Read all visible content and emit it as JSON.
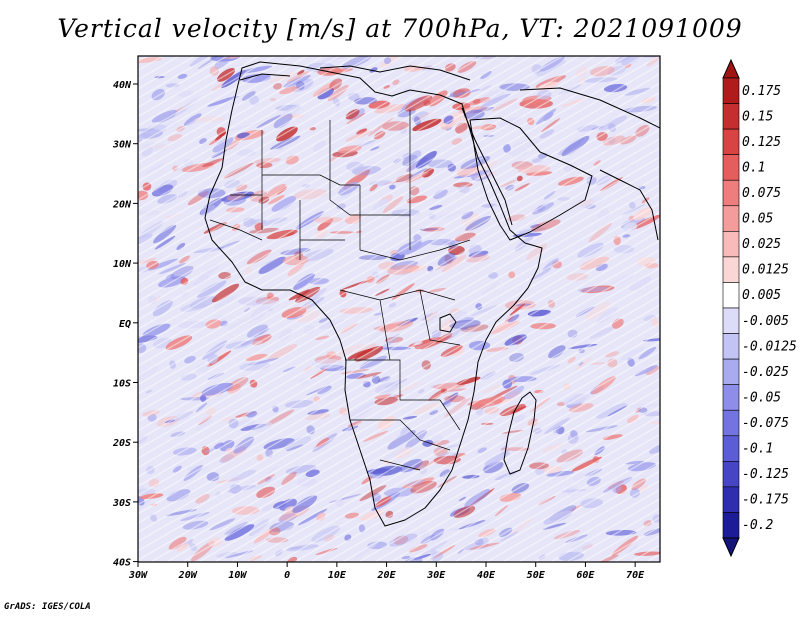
{
  "title": "Vertical velocity [m/s] at 700hPa, VT: 2021091009",
  "footer": "GrADS: IGES/COLA",
  "lon_labels": [
    "30W",
    "20W",
    "10W",
    "0",
    "10E",
    "20E",
    "30E",
    "40E",
    "50E",
    "60E",
    "70E"
  ],
  "lat_labels": [
    "40N",
    "30N",
    "20N",
    "10N",
    "EQ",
    "10S",
    "20S",
    "30S",
    "40S"
  ],
  "colorbar": {
    "labels": [
      "0.175",
      "0.15",
      "0.125",
      "0.1",
      "0.075",
      "0.05",
      "0.025",
      "0.0125",
      "0.005",
      "-0.005",
      "-0.0125",
      "-0.025",
      "-0.05",
      "-0.075",
      "-0.1",
      "-0.125",
      "-0.175",
      "-0.2"
    ],
    "colors": [
      "#b01c1c",
      "#c42e2e",
      "#d84444",
      "#e45e5e",
      "#ee7e7e",
      "#f49c9c",
      "#f8baba",
      "#fbd6d6",
      "#ffffff",
      "#dcdcf8",
      "#c4c4f4",
      "#aaaaf0",
      "#8e8eea",
      "#7474e0",
      "#5c5cd4",
      "#4646c4",
      "#2e2eae",
      "#1c1c96"
    ],
    "top_arrow_color": "#a01414",
    "bottom_arrow_color": "#14147a"
  },
  "map_colors": {
    "background": "#e6e6f8",
    "land_tint": "#f1e2e2"
  }
}
